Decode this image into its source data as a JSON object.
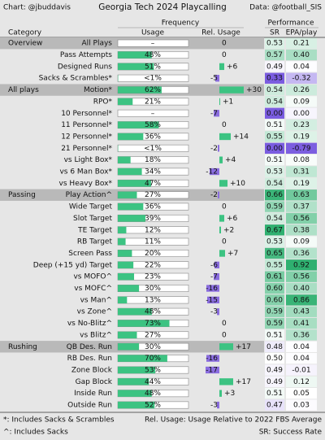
{
  "header": {
    "credit": "Chart: @jbuddavis",
    "title": "Georgia Tech 2024 Playcalling",
    "source": "Data: @football_SIS"
  },
  "columns": {
    "frequency": "Frequency",
    "performance": "Performance",
    "category": "Category",
    "usage": "Usage",
    "rel_usage": "Rel. Usage",
    "sr": "SR",
    "epa": "EPA/play"
  },
  "rows": [
    {
      "group": "Overview",
      "label": "All Plays",
      "usage": null,
      "usage_label": "–",
      "rel": 0,
      "rel_label": "0",
      "sr": "0.53",
      "epa": "0.21"
    },
    {
      "label": "Pass Attempts",
      "usage": 48,
      "usage_label": "48%",
      "rel": 0,
      "rel_label": "0",
      "sr": "0.57",
      "epa": "0.40"
    },
    {
      "label": "Designed Runs",
      "usage": 51,
      "usage_label": "51%",
      "rel": 6,
      "rel_label": "+6",
      "sr": "0.49",
      "epa": "0.04"
    },
    {
      "label": "Sacks & Scrambles*",
      "usage": 0.5,
      "usage_label": "<1%",
      "rel": -5,
      "rel_label": "-5",
      "sr": "0.33",
      "epa": "-0.32"
    },
    {
      "group": "All plays",
      "label": "Motion*",
      "usage": 62,
      "usage_label": "62%",
      "rel": 30,
      "rel_label": "+30",
      "sr": "0.54",
      "epa": "0.26"
    },
    {
      "label": "RPO*",
      "usage": 21,
      "usage_label": "21%",
      "rel": 1,
      "rel_label": "+1",
      "sr": "0.54",
      "epa": "0.09"
    },
    {
      "label": "10 Personnel*",
      "usage": null,
      "usage_label": "–",
      "rel": -7,
      "rel_label": "-7",
      "sr": "0.00",
      "epa": "0.00"
    },
    {
      "label": "11 Personnel*",
      "usage": 58,
      "usage_label": "58%",
      "rel": 0,
      "rel_label": "0",
      "sr": "0.51",
      "epa": "0.23"
    },
    {
      "label": "12 Personnel*",
      "usage": 36,
      "usage_label": "36%",
      "rel": 14,
      "rel_label": "+14",
      "sr": "0.55",
      "epa": "0.19"
    },
    {
      "label": "21 Personnel*",
      "usage": 0.5,
      "usage_label": "<1%",
      "rel": -2,
      "rel_label": "-2",
      "sr": "0.00",
      "epa": "-0.79"
    },
    {
      "label": "vs Light Box*",
      "usage": 18,
      "usage_label": "18%",
      "rel": 4,
      "rel_label": "+4",
      "sr": "0.51",
      "epa": "0.08"
    },
    {
      "label": "vs 6 Man Box*",
      "usage": 34,
      "usage_label": "34%",
      "rel": -12,
      "rel_label": "-12",
      "sr": "0.53",
      "epa": "0.31"
    },
    {
      "label": "vs Heavy Box*",
      "usage": 47,
      "usage_label": "47%",
      "rel": 10,
      "rel_label": "+10",
      "sr": "0.54",
      "epa": "0.19"
    },
    {
      "group": "Passing",
      "label": "Play Action^",
      "usage": 27,
      "usage_label": "27%",
      "rel": -2,
      "rel_label": "-2",
      "sr": "0.66",
      "epa": "0.63"
    },
    {
      "label": "Wide Target",
      "usage": 36,
      "usage_label": "36%",
      "rel": 0,
      "rel_label": "0",
      "sr": "0.59",
      "epa": "0.37"
    },
    {
      "label": "Slot Target",
      "usage": 39,
      "usage_label": "39%",
      "rel": 6,
      "rel_label": "+6",
      "sr": "0.54",
      "epa": "0.56"
    },
    {
      "label": "TE Target",
      "usage": 12,
      "usage_label": "12%",
      "rel": 2,
      "rel_label": "+2",
      "sr": "0.67",
      "epa": "0.38"
    },
    {
      "label": "RB Target",
      "usage": 11,
      "usage_label": "11%",
      "rel": 0,
      "rel_label": "0",
      "sr": "0.53",
      "epa": "0.09"
    },
    {
      "label": "Screen Pass",
      "usage": 20,
      "usage_label": "20%",
      "rel": 7,
      "rel_label": "+7",
      "sr": "0.65",
      "epa": "0.36"
    },
    {
      "label": "Deep (+15 yd) Target",
      "usage": 22,
      "usage_label": "22%",
      "rel": -6,
      "rel_label": "-6",
      "sr": "0.55",
      "epa": "0.92"
    },
    {
      "label": "vs MOFO^",
      "usage": 23,
      "usage_label": "23%",
      "rel": -7,
      "rel_label": "-7",
      "sr": "0.61",
      "epa": "0.56"
    },
    {
      "label": "vs MOFC^",
      "usage": 30,
      "usage_label": "30%",
      "rel": -16,
      "rel_label": "-16",
      "sr": "0.60",
      "epa": "0.40"
    },
    {
      "label": "vs Man^",
      "usage": 13,
      "usage_label": "13%",
      "rel": -15,
      "rel_label": "-15",
      "sr": "0.60",
      "epa": "0.86"
    },
    {
      "label": "vs Zone^",
      "usage": 48,
      "usage_label": "48%",
      "rel": -3,
      "rel_label": "-3",
      "sr": "0.59",
      "epa": "0.43"
    },
    {
      "label": "vs No-Blitz^",
      "usage": 73,
      "usage_label": "73%",
      "rel": 0,
      "rel_label": "0",
      "sr": "0.59",
      "epa": "0.41"
    },
    {
      "label": "vs Blitz^",
      "usage": 27,
      "usage_label": "27%",
      "rel": 0,
      "rel_label": "0",
      "sr": "0.51",
      "epa": "0.36"
    },
    {
      "group": "Rushing",
      "label": "QB Des. Run",
      "usage": 30,
      "usage_label": "30%",
      "rel": 17,
      "rel_label": "+17",
      "sr": "0.48",
      "epa": "0.04"
    },
    {
      "label": "RB Des. Run",
      "usage": 70,
      "usage_label": "70%",
      "rel": -16,
      "rel_label": "-16",
      "sr": "0.50",
      "epa": "0.04"
    },
    {
      "label": "Zone Block",
      "usage": 53,
      "usage_label": "53%",
      "rel": -17,
      "rel_label": "-17",
      "sr": "0.49",
      "epa": "-0.01"
    },
    {
      "label": "Gap Block",
      "usage": 44,
      "usage_label": "44%",
      "rel": 17,
      "rel_label": "+17",
      "sr": "0.49",
      "epa": "0.12"
    },
    {
      "label": "Inside Run",
      "usage": 48,
      "usage_label": "48%",
      "rel": 3,
      "rel_label": "+3",
      "sr": "0.51",
      "epa": "0.05"
    },
    {
      "label": "Outside Run",
      "usage": 52,
      "usage_label": "52%",
      "rel": -3,
      "rel_label": "-3",
      "sr": "0.47",
      "epa": "0.03"
    }
  ],
  "footer": {
    "note1": "*: Includes Sacks & Scrambles",
    "note2": "Rel. Usage: Usage Relative to 2022 FBS Average",
    "note3": "^: Includes Sacks",
    "note4": "SR: Success Rate"
  },
  "colors": {
    "usage_bar": "#3cc382",
    "positive": "#3cc382",
    "negative": "#8a6ddf"
  }
}
